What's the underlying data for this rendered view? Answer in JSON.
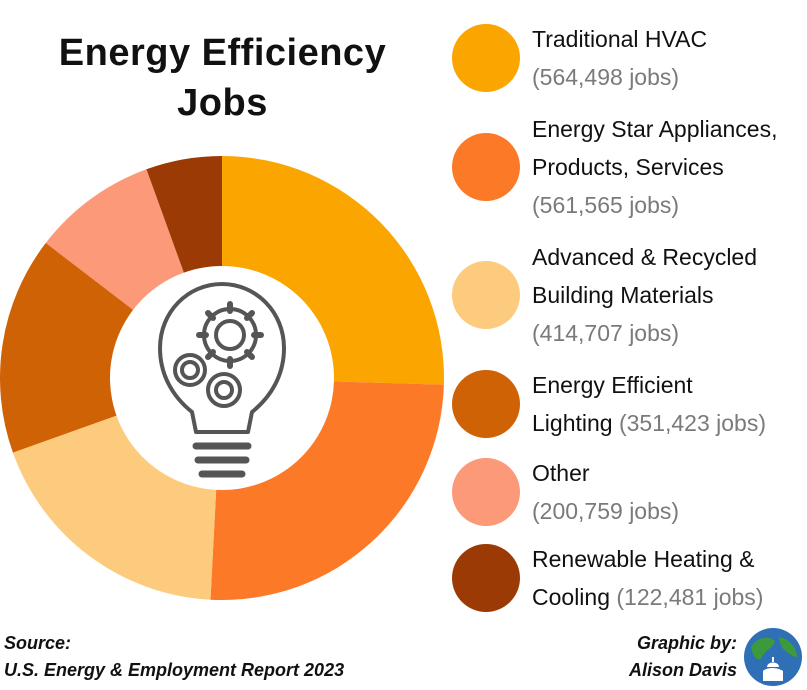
{
  "title": {
    "line1": "Energy Efficiency",
    "line2": "Jobs"
  },
  "chart_data": {
    "type": "pie",
    "variant": "donut",
    "title": "Energy Efficiency Jobs",
    "categories": [
      "Traditional HVAC",
      "Energy Star Appliances, Products, Services",
      "Advanced & Recycled Building Materials",
      "Energy Efficient Lighting",
      "Other",
      "Renewable Heating & Cooling"
    ],
    "values": [
      564498,
      561565,
      414707,
      351423,
      200759,
      122481
    ],
    "colors": [
      "#FBA500",
      "#FC7A27",
      "#FDCB7E",
      "#D06206",
      "#FC9979",
      "#9B3A04"
    ],
    "center_icon": "lightbulb-gears-icon"
  },
  "legend": [
    {
      "lines": [
        "Traditional HVAC"
      ],
      "jobs": "(564,498 jobs)",
      "jobs_inline": false
    },
    {
      "lines": [
        "Energy Star Appliances,",
        "Products, Services"
      ],
      "jobs": "(561,565 jobs)",
      "jobs_inline": false
    },
    {
      "lines": [
        "Advanced & Recycled",
        "Building Materials"
      ],
      "jobs": "(414,707 jobs)",
      "jobs_inline": false
    },
    {
      "lines": [
        "Energy Efficient",
        "Lighting"
      ],
      "jobs": "(351,423 jobs)",
      "jobs_inline": true
    },
    {
      "lines": [
        "Other"
      ],
      "jobs": "(200,759 jobs)",
      "jobs_inline": false
    },
    {
      "lines": [
        "Renewable Heating &",
        "Cooling"
      ],
      "jobs": "(122,481 jobs)",
      "jobs_inline": true
    }
  ],
  "footer": {
    "source_label": "Source:",
    "source_text": "U.S. Energy & Employment Report 2023",
    "credit_label": "Graphic by:",
    "credit_name": "Alison Davis",
    "logo_icon": "globe-capitol-icon"
  }
}
